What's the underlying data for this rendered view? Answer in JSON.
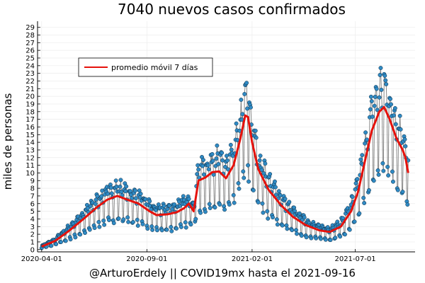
{
  "chart_data": {
    "type": "scatter",
    "title": "7040 nuevos casos confirmados",
    "xlabel": "@ArturoErdely || COVID19mx hasta el 2021-09-16",
    "ylabel": "miles de personas",
    "x_range": [
      "2020-03-26",
      "2021-09-26"
    ],
    "ylim": [
      -0.3,
      29.8
    ],
    "x_ticks": [
      "2020-04-01",
      "2020-09-01",
      "2021-02-01",
      "2021-07-01"
    ],
    "y_ticks": [
      0,
      1,
      2,
      3,
      4,
      5,
      6,
      7,
      8,
      9,
      10,
      11,
      12,
      13,
      14,
      15,
      16,
      17,
      18,
      19,
      20,
      21,
      22,
      23,
      24,
      25,
      26,
      27,
      28,
      29
    ],
    "grid": true,
    "legend_position": "top-left",
    "colors": {
      "points": "#2f8ac4",
      "stems": "#7f7f7f",
      "moving_average": "#e6120c"
    },
    "series": [
      {
        "name": "promedio móvil 7 días",
        "style": "line",
        "points": [
          [
            "2020-04-01",
            0.4
          ],
          [
            "2020-04-20",
            1.1
          ],
          [
            "2020-05-10",
            2.4
          ],
          [
            "2020-06-01",
            4.0
          ],
          [
            "2020-06-20",
            5.5
          ],
          [
            "2020-07-05",
            6.5
          ],
          [
            "2020-07-20",
            7.0
          ],
          [
            "2020-08-01",
            6.6
          ],
          [
            "2020-08-20",
            6.0
          ],
          [
            "2020-09-05",
            5.0
          ],
          [
            "2020-09-15",
            4.5
          ],
          [
            "2020-10-01",
            4.6
          ],
          [
            "2020-10-15",
            4.9
          ],
          [
            "2020-10-25",
            5.4
          ],
          [
            "2020-11-01",
            6.0
          ],
          [
            "2020-11-08",
            5.0
          ],
          [
            "2020-11-15",
            9.0
          ],
          [
            "2020-11-25",
            9.4
          ],
          [
            "2020-12-05",
            10.1
          ],
          [
            "2020-12-15",
            10.2
          ],
          [
            "2020-12-25",
            9.3
          ],
          [
            "2021-01-05",
            11.0
          ],
          [
            "2021-01-15",
            14.5
          ],
          [
            "2021-01-22",
            17.5
          ],
          [
            "2021-01-26",
            17.3
          ],
          [
            "2021-02-01",
            14.0
          ],
          [
            "2021-02-10",
            10.5
          ],
          [
            "2021-02-25",
            7.8
          ],
          [
            "2021-03-15",
            5.8
          ],
          [
            "2021-04-01",
            4.3
          ],
          [
            "2021-04-20",
            3.2
          ],
          [
            "2021-05-10",
            2.5
          ],
          [
            "2021-05-25",
            2.3
          ],
          [
            "2021-06-10",
            3.0
          ],
          [
            "2021-06-25",
            5.0
          ],
          [
            "2021-07-05",
            7.5
          ],
          [
            "2021-07-15",
            11.5
          ],
          [
            "2021-07-25",
            15.5
          ],
          [
            "2021-08-05",
            18.0
          ],
          [
            "2021-08-12",
            18.6
          ],
          [
            "2021-08-20",
            17.0
          ],
          [
            "2021-08-30",
            14.5
          ],
          [
            "2021-09-08",
            13.0
          ],
          [
            "2021-09-12",
            12.0
          ],
          [
            "2021-09-16",
            10.0
          ]
        ]
      }
    ]
  },
  "legend": {
    "label": "promedio móvil 7 días"
  }
}
